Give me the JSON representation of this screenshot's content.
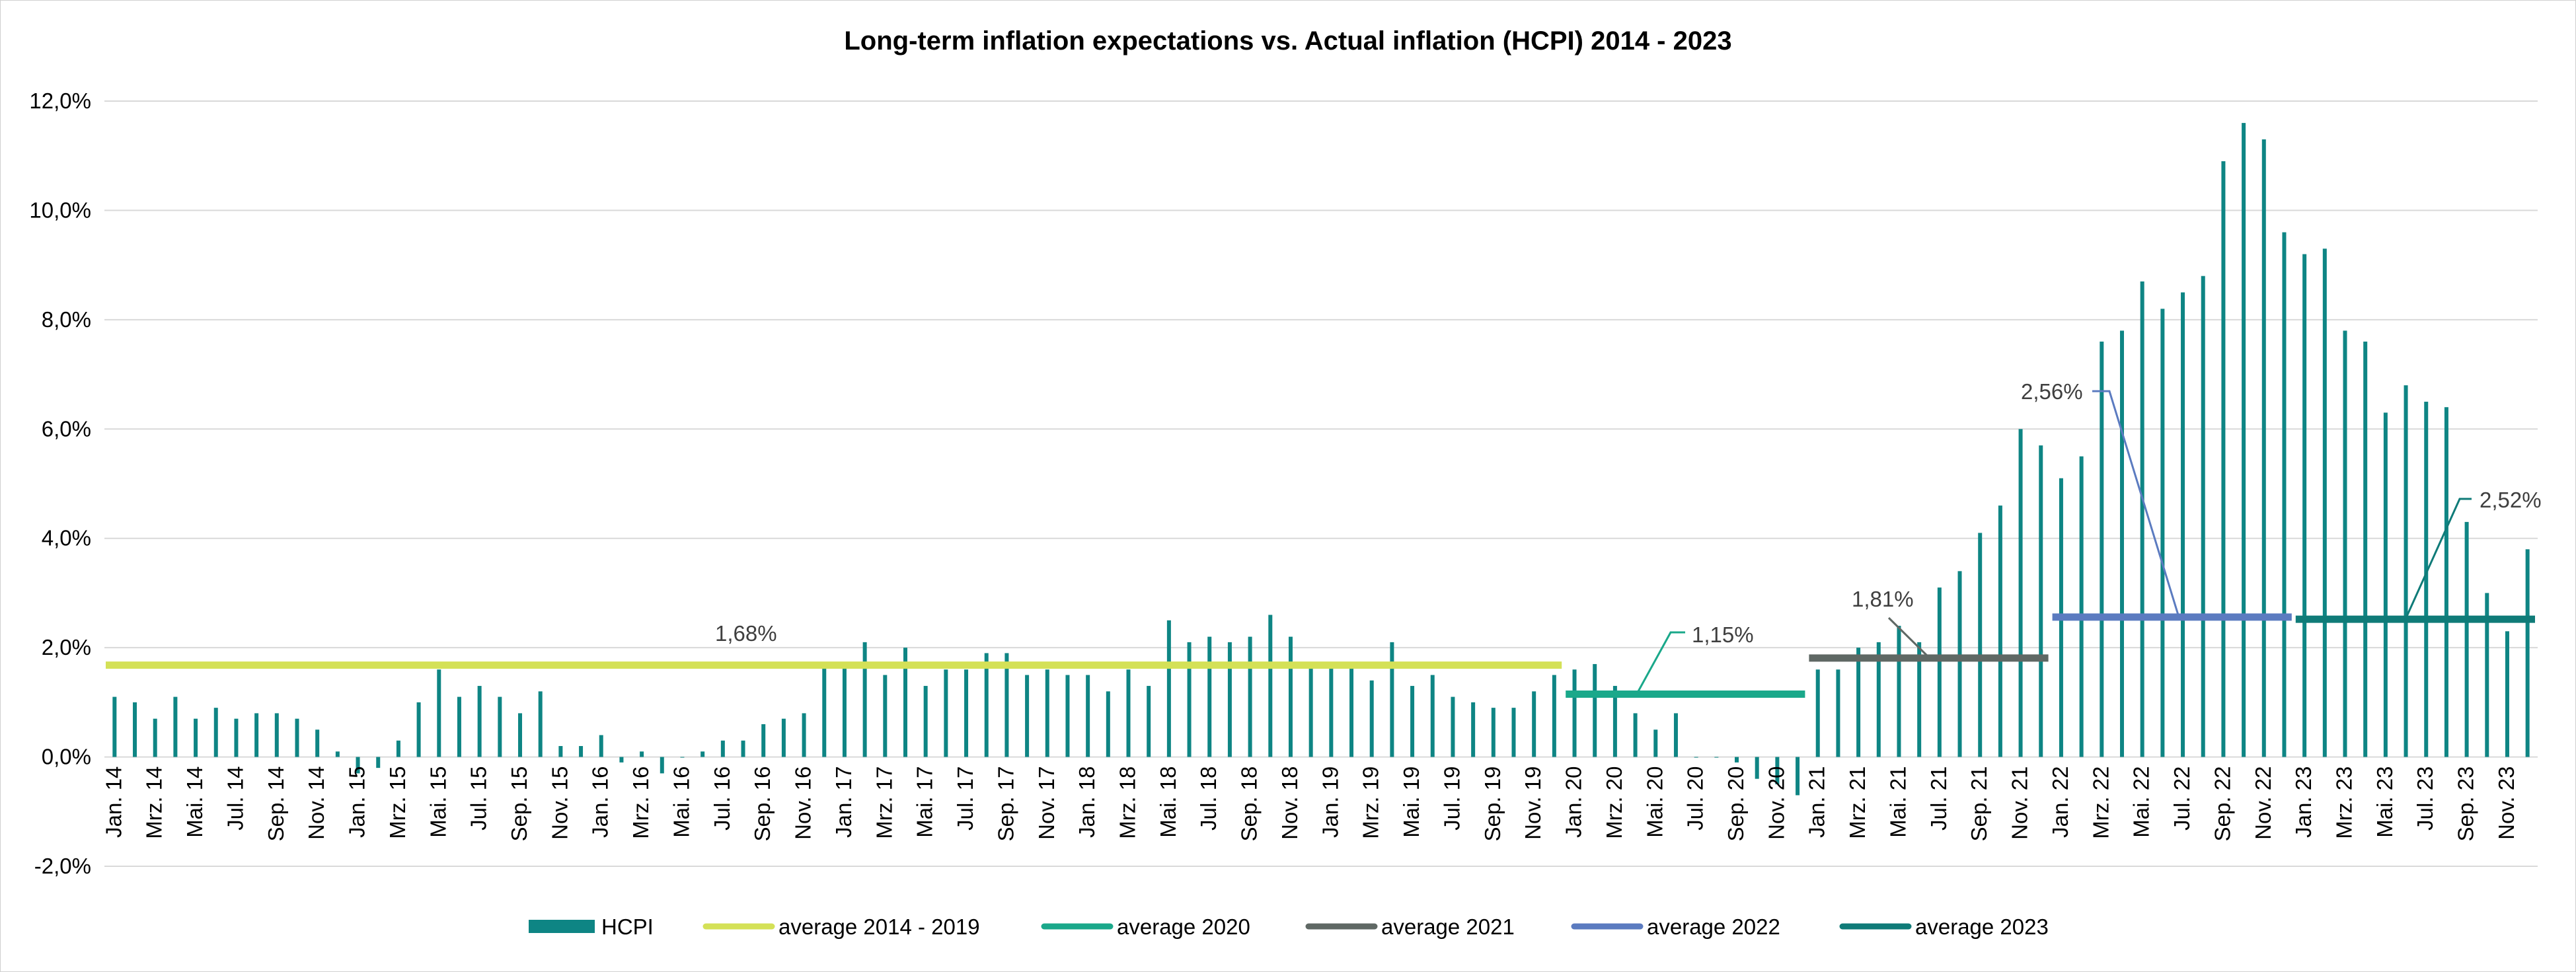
{
  "chart_data": {
    "type": "bar",
    "title": "Long-term inflation expectations vs. Actual inflation (HCPI) 2014 - 2023",
    "xlabel": "",
    "ylabel": "",
    "ylim": [
      -2.0,
      12.0
    ],
    "y_ticks": [
      "-2,0%",
      "0,0%",
      "2,0%",
      "4,0%",
      "6,0%",
      "8,0%",
      "10,0%",
      "12,0%"
    ],
    "y_tick_values": [
      -2,
      0,
      2,
      4,
      6,
      8,
      10,
      12
    ],
    "grid": "horizontal",
    "legend_placement": "bottom",
    "categories": [
      "Jan. 14",
      "Feb. 14",
      "Mrz. 14",
      "Apr. 14",
      "Mai. 14",
      "Jun. 14",
      "Jul. 14",
      "Aug. 14",
      "Sep. 14",
      "Okt. 14",
      "Nov. 14",
      "Dez. 14",
      "Jan. 15",
      "Feb. 15",
      "Mrz. 15",
      "Apr. 15",
      "Mai. 15",
      "Jun. 15",
      "Jul. 15",
      "Aug. 15",
      "Sep. 15",
      "Okt. 15",
      "Nov. 15",
      "Dez. 15",
      "Jan. 16",
      "Feb. 16",
      "Mrz. 16",
      "Apr. 16",
      "Mai. 16",
      "Jun. 16",
      "Jul. 16",
      "Aug. 16",
      "Sep. 16",
      "Okt. 16",
      "Nov. 16",
      "Dez. 16",
      "Jan. 17",
      "Feb. 17",
      "Mrz. 17",
      "Apr. 17",
      "Mai. 17",
      "Jun. 17",
      "Jul. 17",
      "Aug. 17",
      "Sep. 17",
      "Okt. 17",
      "Nov. 17",
      "Dez. 17",
      "Jan. 18",
      "Feb. 18",
      "Mrz. 18",
      "Apr. 18",
      "Mai. 18",
      "Jun. 18",
      "Jul. 18",
      "Aug. 18",
      "Sep. 18",
      "Okt. 18",
      "Nov. 18",
      "Dez. 18",
      "Jan. 19",
      "Feb. 19",
      "Mrz. 19",
      "Apr. 19",
      "Mai. 19",
      "Jun. 19",
      "Jul. 19",
      "Aug. 19",
      "Sep. 19",
      "Okt. 19",
      "Nov. 19",
      "Dez. 19",
      "Jan. 20",
      "Feb. 20",
      "Mrz. 20",
      "Apr. 20",
      "Mai. 20",
      "Jun. 20",
      "Jul. 20",
      "Aug. 20",
      "Sep. 20",
      "Okt. 20",
      "Nov. 20",
      "Dez. 20",
      "Jan. 21",
      "Feb. 21",
      "Mrz. 21",
      "Apr. 21",
      "Mai. 21",
      "Jun. 21",
      "Jul. 21",
      "Aug. 21",
      "Sep. 21",
      "Okt. 21",
      "Nov. 21",
      "Dez. 21",
      "Jan. 22",
      "Feb. 22",
      "Mrz. 22",
      "Apr. 22",
      "Mai. 22",
      "Jun. 22",
      "Jul. 22",
      "Aug. 22",
      "Sep. 22",
      "Okt. 22",
      "Nov. 22",
      "Dez. 22",
      "Jan. 23",
      "Feb. 23",
      "Mrz. 23",
      "Apr. 23",
      "Mai. 23",
      "Jun. 23",
      "Jul. 23",
      "Aug. 23",
      "Sep. 23",
      "Okt. 23",
      "Nov. 23",
      "Dez. 23"
    ],
    "visible_category_labels": [
      "Jan. 14",
      "Mrz. 14",
      "Mai. 14",
      "Jul. 14",
      "Sep. 14",
      "Nov. 14",
      "Jan. 15",
      "Mrz. 15",
      "Mai. 15",
      "Jul. 15",
      "Sep. 15",
      "Nov. 15",
      "Jan. 16",
      "Mrz. 16",
      "Mai. 16",
      "Jul. 16",
      "Sep. 16",
      "Nov. 16",
      "Jan. 17",
      "Mrz. 17",
      "Mai. 17",
      "Jul. 17",
      "Sep. 17",
      "Nov. 17",
      "Jan. 18",
      "Mrz. 18",
      "Mai. 18",
      "Jul. 18",
      "Sep. 18",
      "Nov. 18",
      "Jan. 19",
      "Mrz. 19",
      "Mai. 19",
      "Jul. 19",
      "Sep. 19",
      "Nov. 19",
      "Jan. 20",
      "Mrz. 20",
      "Mai. 20",
      "Jul. 20",
      "Sep. 20",
      "Nov. 20",
      "Jan. 21",
      "Mrz. 21",
      "Mai. 21",
      "Jul. 21",
      "Sep. 21",
      "Nov. 21",
      "Jan. 22",
      "Mrz. 22",
      "Mai. 22",
      "Jul. 22",
      "Sep. 22",
      "Nov. 22",
      "Jan. 23",
      "Mrz. 23",
      "Mai. 23",
      "Jul. 23",
      "Sep. 23",
      "Nov. 23"
    ],
    "series": [
      {
        "name": "HCPI",
        "type": "bar",
        "color": "#0e8584",
        "values": [
          1.1,
          1.0,
          0.7,
          1.1,
          0.7,
          0.9,
          0.7,
          0.8,
          0.8,
          0.7,
          0.5,
          0.1,
          -0.3,
          -0.2,
          0.3,
          1.0,
          1.6,
          1.1,
          1.3,
          1.1,
          0.8,
          1.2,
          0.2,
          0.2,
          0.4,
          -0.1,
          0.1,
          -0.3,
          0.0,
          0.1,
          0.3,
          0.3,
          0.6,
          0.7,
          0.8,
          1.7,
          1.7,
          2.1,
          1.5,
          2.0,
          1.3,
          1.6,
          1.6,
          1.9,
          1.9,
          1.5,
          1.6,
          1.5,
          1.5,
          1.2,
          1.6,
          1.3,
          2.5,
          2.1,
          2.2,
          2.1,
          2.2,
          2.6,
          2.2,
          1.7,
          1.7,
          1.7,
          1.4,
          2.1,
          1.3,
          1.5,
          1.1,
          1.0,
          0.9,
          0.9,
          1.2,
          1.5,
          1.6,
          1.7,
          1.3,
          0.8,
          0.5,
          0.8,
          0.0,
          0.0,
          -0.1,
          -0.4,
          -0.5,
          -0.7,
          1.6,
          1.6,
          2.0,
          2.1,
          2.4,
          2.1,
          3.1,
          3.4,
          4.1,
          4.6,
          6.0,
          5.7,
          5.1,
          5.5,
          7.6,
          7.8,
          8.7,
          8.2,
          8.5,
          8.8,
          10.9,
          11.6,
          11.3,
          9.6,
          9.2,
          9.3,
          7.8,
          7.6,
          6.3,
          6.8,
          6.5,
          6.4,
          4.3,
          3.0,
          2.3,
          3.8
        ]
      },
      {
        "name": "average 2014 - 2019",
        "type": "line",
        "color": "#d4e157",
        "value": 1.68,
        "start": "Jan. 14",
        "end": "Dez. 19",
        "label": "1,68%"
      },
      {
        "name": "average 2020",
        "type": "line",
        "color": "#1aa88a",
        "value": 1.15,
        "start": "Jan. 20",
        "end": "Dez. 20",
        "label": "1,15%"
      },
      {
        "name": "average 2021",
        "type": "line",
        "color": "#5f6864",
        "value": 1.81,
        "start": "Jan. 21",
        "end": "Dez. 21",
        "label": "1,81%"
      },
      {
        "name": "average 2022",
        "type": "line",
        "color": "#5b7bc0",
        "value": 2.56,
        "start": "Jan. 22",
        "end": "Dez. 22",
        "label": "2,56%"
      },
      {
        "name": "average 2023",
        "type": "line",
        "color": "#0f7b78",
        "value": 2.52,
        "start": "Jan. 23",
        "end": "Dez. 23",
        "label": "2,52%"
      }
    ]
  }
}
